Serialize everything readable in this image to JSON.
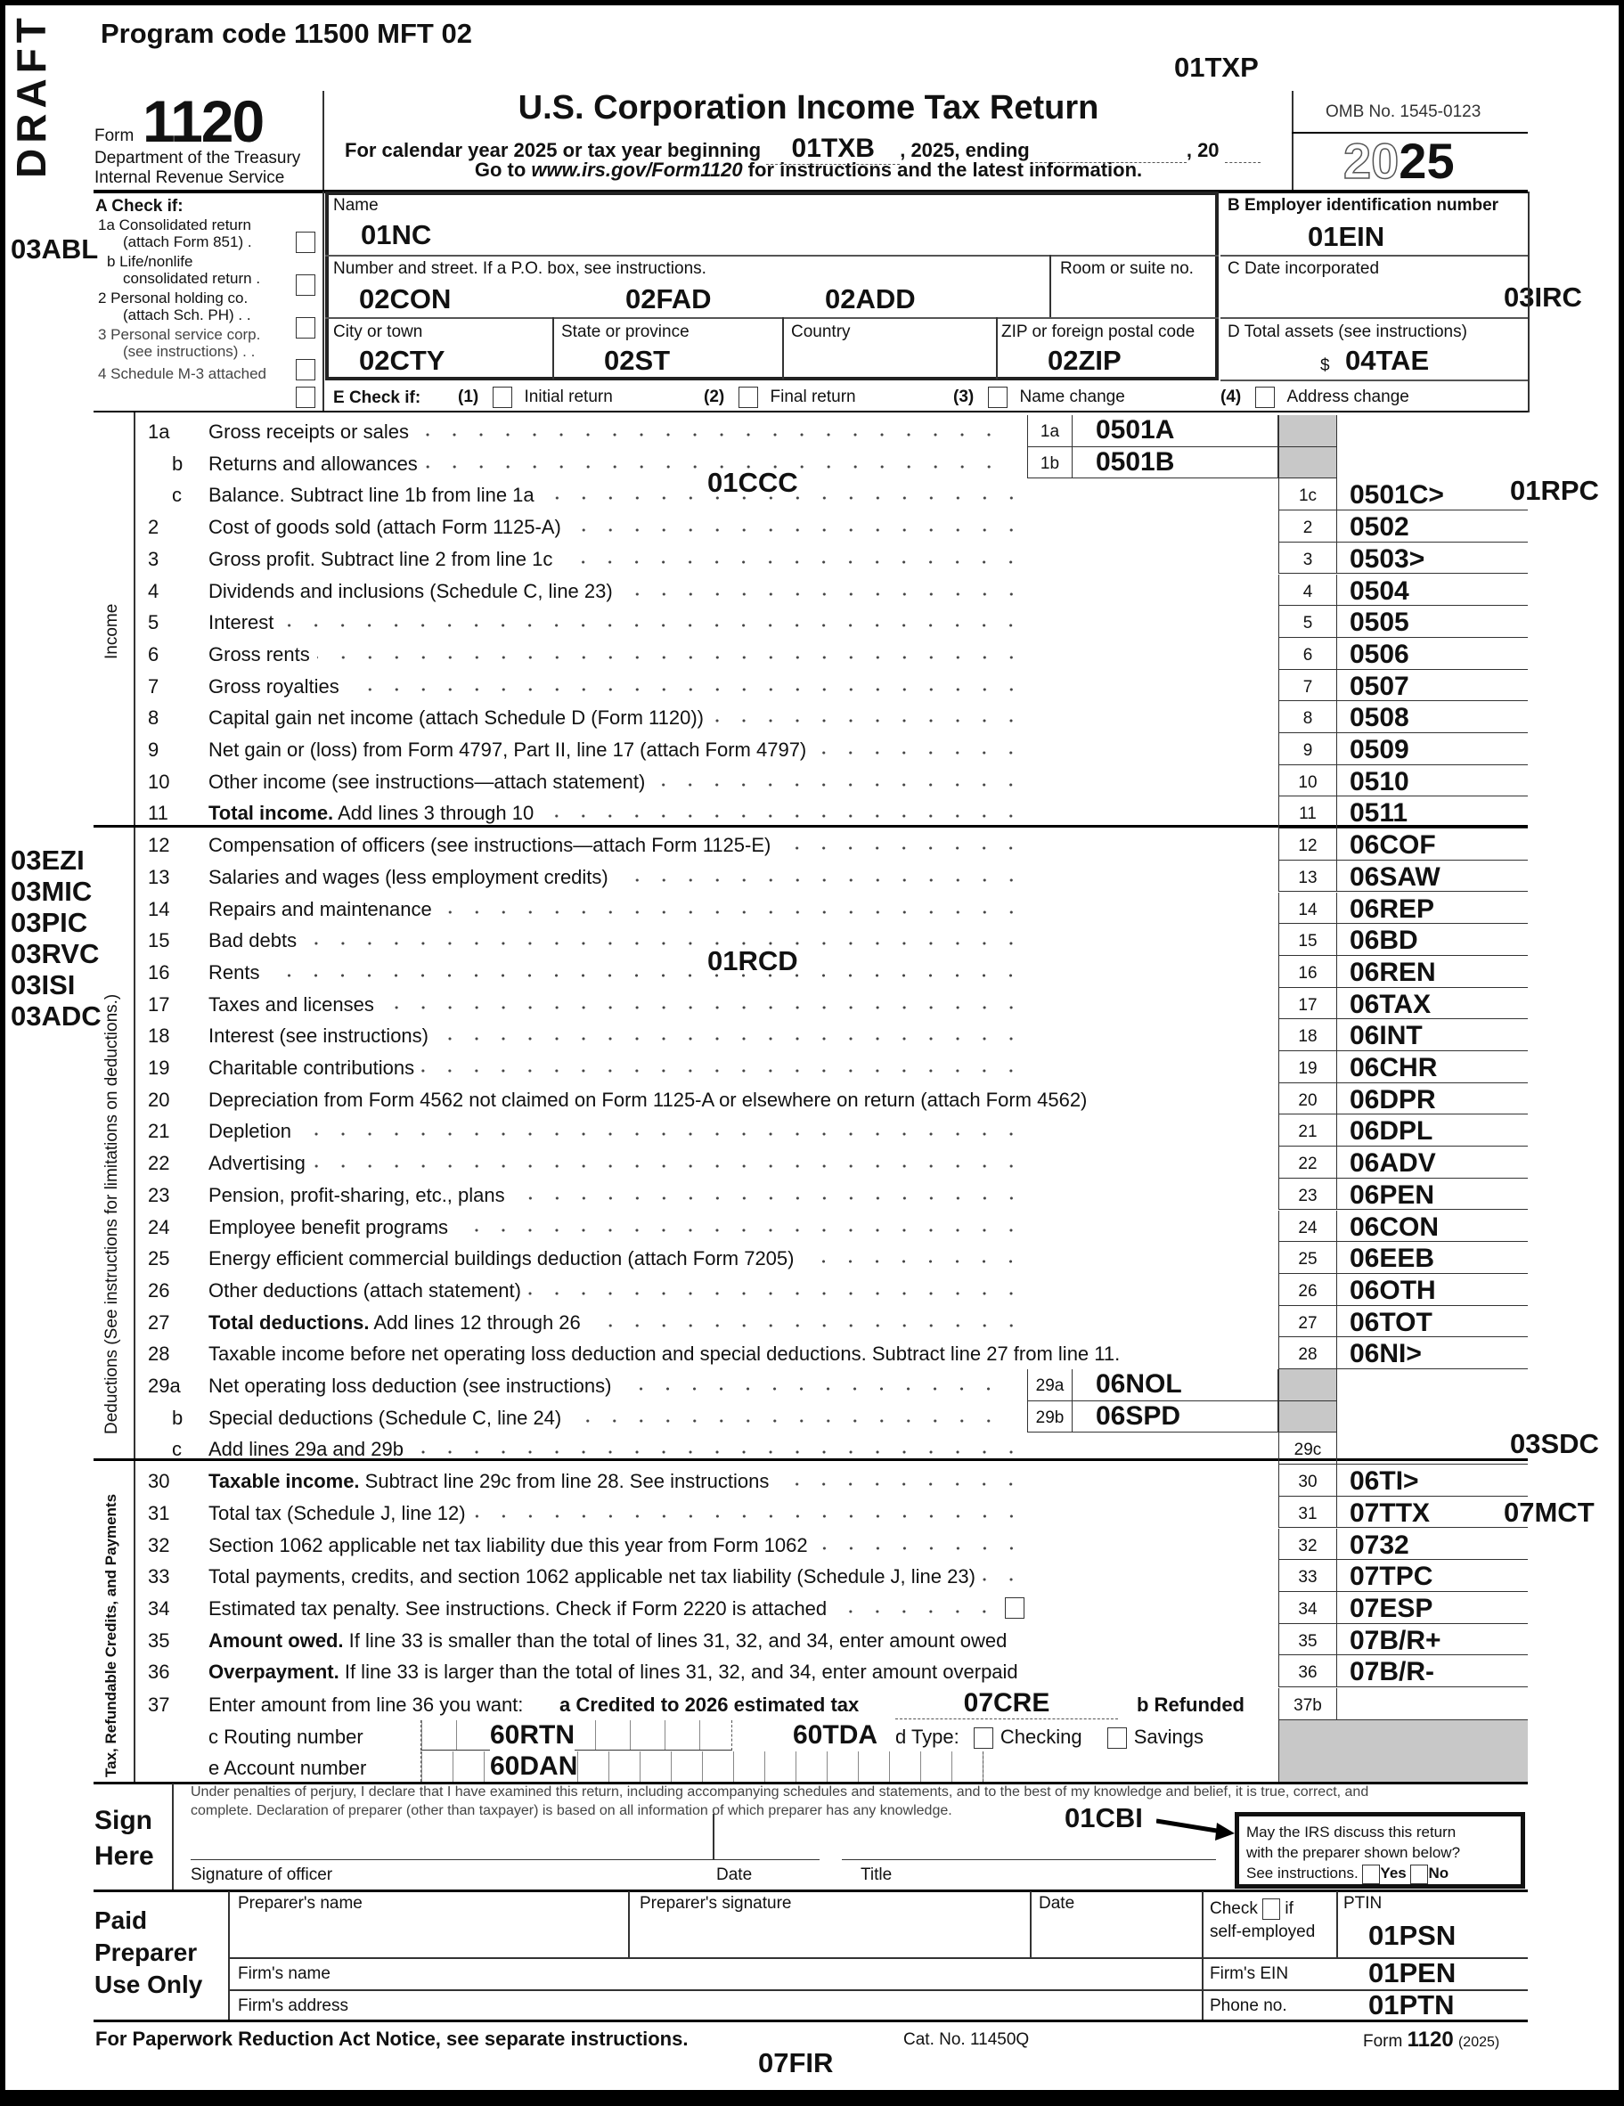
{
  "header": {
    "draft": "DRAFT",
    "program_code": "Program code 11500  MFT 02",
    "txp": "01TXP",
    "form_word": "Form",
    "form_number": "1120",
    "dept1": "Department of the Treasury",
    "dept2": "Internal Revenue Service",
    "title": "U.S. Corporation Income Tax Return",
    "calendar_prefix": "For calendar year 2025 or tax year beginning",
    "txb": "01TXB",
    "calendar_mid": ", 2025, ending",
    "calendar_end": ", 20",
    "goto_prefix": "Go to ",
    "goto_url": "www.irs.gov/Form1120",
    "goto_suffix": " for instructions and the latest information.",
    "omb": "OMB No. 1545-0123",
    "year_outline": "20",
    "year_bold": "25"
  },
  "check_a": {
    "title": "A  Check if:",
    "items": [
      "1a Consolidated return",
      "(attach Form 851)  .",
      "b Life/nonlife",
      "consolidated return .",
      "2  Personal holding co.",
      "(attach Sch. PH)  .  .",
      "3  Personal service corp.",
      "(see instructions)  .  .",
      "4  Schedule M-3 attached"
    ],
    "annotation": "03ABL"
  },
  "name_block": {
    "name_label": "Name",
    "name_value": "01NC",
    "street_label": "Number and street. If a P.O. box, see instructions.",
    "street_values": [
      "02CON",
      "02FAD",
      "02ADD"
    ],
    "room_label": "Room or suite no.",
    "city_label": "City or town",
    "city_value": "02CTY",
    "state_label": "State or province",
    "state_value": "02ST",
    "country_label": "Country",
    "zip_label": "ZIP or foreign postal code",
    "zip_value": "02ZIP"
  },
  "right_block": {
    "b_label": "B  Employer identification number",
    "b_value": "01EIN",
    "c_label": "C Date incorporated",
    "c_value": "03IRC",
    "d_label": "D Total assets (see instructions)",
    "d_currency": "$",
    "d_value": "04TAE"
  },
  "check_e": {
    "label": "E  Check if:",
    "items": [
      {
        "n": "(1)",
        "label": "Initial return"
      },
      {
        "n": "(2)",
        "label": "Final return"
      },
      {
        "n": "(3)",
        "label": "Name change"
      },
      {
        "n": "(4)",
        "label": "Address change"
      }
    ]
  },
  "sections": {
    "income": "Income",
    "deductions": "Deductions (See instructions for limitations on deductions.)",
    "tax": "Tax, Refundable Credits, and Payments"
  },
  "annotations": {
    "ccc": "01CCC",
    "rpc": "01RPC",
    "rcd": "01RCD",
    "left_codes": [
      "03EZI",
      "03MIC",
      "03PIC",
      "03RVC",
      "03ISI",
      "03ADC"
    ],
    "sdc": "03SDC",
    "mct": "07MCT"
  },
  "lines": [
    {
      "num": "1a",
      "label": "Gross receipts or sales",
      "box": "1a",
      "box_value": "0501A",
      "grey": true
    },
    {
      "sub": "b",
      "label": "Returns and allowances",
      "box": "1b",
      "box_value": "0501B",
      "grey": true
    },
    {
      "sub": "c",
      "label": "Balance. Subtract line 1b from line 1a",
      "rn": "1c",
      "value": "0501C>"
    },
    {
      "num": "2",
      "label": "Cost of goods sold (attach Form 1125-A)",
      "rn": "2",
      "value": "0502"
    },
    {
      "num": "3",
      "label": "Gross profit. Subtract line 2 from line 1c",
      "rn": "3",
      "value": "0503>"
    },
    {
      "num": "4",
      "label": "Dividends and inclusions (Schedule C, line 23)",
      "rn": "4",
      "value": "0504"
    },
    {
      "num": "5",
      "label": "Interest",
      "rn": "5",
      "value": "0505"
    },
    {
      "num": "6",
      "label": "Gross rents",
      "rn": "6",
      "value": "0506"
    },
    {
      "num": "7",
      "label": "Gross royalties",
      "rn": "7",
      "value": "0507"
    },
    {
      "num": "8",
      "label": "Capital gain net income (attach Schedule D (Form 1120))",
      "rn": "8",
      "value": "0508"
    },
    {
      "num": "9",
      "label": "Net gain or (loss) from Form 4797, Part II, line 17 (attach Form 4797)",
      "rn": "9",
      "value": "0509"
    },
    {
      "num": "10",
      "label": "Other income (see instructions—attach statement)",
      "rn": "10",
      "value": "0510"
    },
    {
      "num": "11",
      "bold": "Total income.",
      "label": " Add lines 3 through 10",
      "rn": "11",
      "value": "0511"
    },
    {
      "num": "12",
      "label": "Compensation of officers (see instructions—attach Form 1125-E)",
      "rn": "12",
      "value": "06COF"
    },
    {
      "num": "13",
      "label": "Salaries and wages (less employment credits)",
      "rn": "13",
      "value": "06SAW"
    },
    {
      "num": "14",
      "label": "Repairs and maintenance",
      "rn": "14",
      "value": "06REP"
    },
    {
      "num": "15",
      "label": "Bad debts",
      "rn": "15",
      "value": "06BD"
    },
    {
      "num": "16",
      "label": "Rents",
      "rn": "16",
      "value": "06REN"
    },
    {
      "num": "17",
      "label": "Taxes and licenses",
      "rn": "17",
      "value": "06TAX"
    },
    {
      "num": "18",
      "label": "Interest (see instructions)",
      "rn": "18",
      "value": "06INT"
    },
    {
      "num": "19",
      "label": "Charitable contributions",
      "rn": "19",
      "value": "06CHR"
    },
    {
      "num": "20",
      "label": "Depreciation from Form 4562 not claimed on Form 1125-A or elsewhere on return (attach Form 4562)",
      "rn": "20",
      "value": "06DPR"
    },
    {
      "num": "21",
      "label": "Depletion",
      "rn": "21",
      "value": "06DPL"
    },
    {
      "num": "22",
      "label": "Advertising",
      "rn": "22",
      "value": "06ADV"
    },
    {
      "num": "23",
      "label": "Pension, profit-sharing, etc., plans",
      "rn": "23",
      "value": "06PEN"
    },
    {
      "num": "24",
      "label": "Employee benefit programs",
      "rn": "24",
      "value": "06CON"
    },
    {
      "num": "25",
      "label": "Energy efficient commercial buildings deduction (attach Form 7205)",
      "rn": "25",
      "value": "06EEB"
    },
    {
      "num": "26",
      "label": "Other deductions (attach statement)",
      "rn": "26",
      "value": "06OTH"
    },
    {
      "num": "27",
      "bold": "Total deductions.",
      "label": " Add lines 12 through 26",
      "rn": "27",
      "value": "06TOT"
    },
    {
      "num": "28",
      "label": "Taxable income before net operating loss deduction and special deductions. Subtract line 27 from line 11.",
      "rn": "28",
      "value": "06NI>"
    },
    {
      "num": "29a",
      "label": "Net operating loss deduction (see instructions)",
      "box": "29a",
      "box_value": "06NOL",
      "grey": true
    },
    {
      "sub": "b",
      "label": "Special deductions (Schedule C, line 24)",
      "box": "29b",
      "box_value": "06SPD",
      "grey": true
    },
    {
      "sub": "c",
      "label": "Add lines 29a and 29b",
      "rn": "29c",
      "value": ""
    },
    {
      "num": "30",
      "bold": "Taxable income.",
      "label": " Subtract line 29c from line 28. See instructions",
      "rn": "30",
      "value": "06TI>"
    },
    {
      "num": "31",
      "label": "Total tax (Schedule J, line 12)",
      "rn": "31",
      "value": "07TTX"
    },
    {
      "num": "32",
      "label": "Section 1062 applicable net tax liability due this year from Form 1062",
      "rn": "32",
      "value": "0732"
    },
    {
      "num": "33",
      "label": "Total payments, credits, and section 1062 applicable net tax liability (Schedule J, line 23)",
      "rn": "33",
      "value": "07TPC"
    },
    {
      "num": "34",
      "label": "Estimated tax penalty. See instructions. Check if Form 2220 is attached",
      "rn": "34",
      "value": "07ESP",
      "checkbox": true
    },
    {
      "num": "35",
      "bold": "Amount owed.",
      "label": " If line 33 is smaller than the total of lines 31, 32, and 34, enter amount owed",
      "rn": "35",
      "value": "07B/R+"
    },
    {
      "num": "36",
      "bold": "Overpayment.",
      "label": " If line 33 is larger than the total of lines 31, 32, and 34, enter amount overpaid",
      "rn": "36",
      "value": "07B/R-"
    }
  ],
  "line37": {
    "num": "37",
    "label": "Enter amount from line 36 you want:",
    "a": "a  Credited to 2026 estimated tax",
    "cre": "07CRE",
    "b": "b  Refunded",
    "rn": "37b",
    "c": "c  Routing number",
    "rtn": "60RTN",
    "tda": "60TDA",
    "d": "d  Type:",
    "checking": "Checking",
    "savings": "Savings",
    "e": "e  Account number",
    "dan": "60DAN"
  },
  "sign": {
    "perjury1": "Under penalties of perjury, I declare that I have examined this return, including accompanying schedules and statements, and to the best of my knowledge and belief, it is true, correct, and",
    "perjury2": "complete. Declaration of preparer (other than taxpayer) is based on all information of which preparer has any knowledge.",
    "sign": "Sign",
    "here": "Here",
    "cbi": "01CBI",
    "sig_label": "Signature of officer",
    "date_label": "Date",
    "title_label": "Title",
    "discuss1": "May the IRS discuss this return",
    "discuss2": "with the preparer shown below?",
    "discuss3": "See instructions.",
    "yes": "Yes",
    "no": "No"
  },
  "preparer": {
    "h1": "Paid",
    "h2": "Preparer",
    "h3": "Use Only",
    "name": "Preparer's name",
    "signature": "Preparer's signature",
    "date": "Date",
    "check": "Check",
    "if": "if",
    "self": "self-employed",
    "ptin": "PTIN",
    "psn": "01PSN",
    "firm_name": "Firm's name",
    "firm_ein": "Firm's EIN",
    "pen": "01PEN",
    "firm_address": "Firm's address",
    "phone": "Phone no.",
    "ptn": "01PTN"
  },
  "footer": {
    "notice": "For Paperwork Reduction Act Notice, see separate instructions.",
    "cat": "Cat. No. 11450Q",
    "form_word": "Form",
    "form_num": "1120",
    "form_year": "(2025)",
    "fir": "07FIR"
  }
}
